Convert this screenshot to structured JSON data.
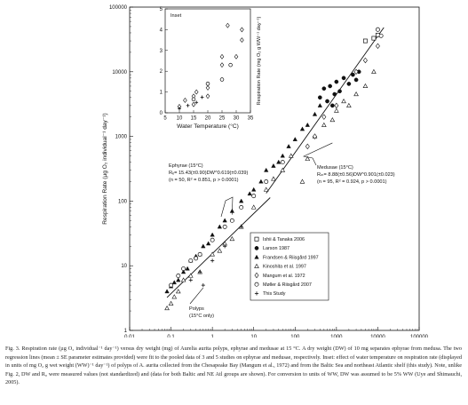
{
  "chart_data": [
    {
      "type": "scatter",
      "title": "",
      "xlabel": "Dry Weight (mg)",
      "ylabel": "Respiration Rate (µg O₂ individual⁻¹ day⁻¹)",
      "xscale": "log",
      "yscale": "log",
      "xlim": [
        0.01,
        100000
      ],
      "ylim": [
        1,
        100000
      ],
      "x_ticks": [
        "0.01",
        "0.1",
        "1",
        "10",
        "100",
        "1000",
        "10000",
        "100000"
      ],
      "y_ticks": [
        "1",
        "10",
        "100",
        "1000",
        "10000",
        "100000"
      ],
      "grid": false,
      "legend_position": "lower-right",
      "series": [
        {
          "name": "Ishii & Tanaka 2006",
          "marker": "square-open",
          "points": [
            [
              8000,
              33000
            ],
            [
              10000,
              37000
            ],
            [
              5000,
              30000
            ]
          ]
        },
        {
          "name": "Larson 1987",
          "marker": "circle-filled",
          "points": [
            [
              400,
              4000
            ],
            [
              500,
              5500
            ],
            [
              600,
              3500
            ],
            [
              700,
              6000
            ],
            [
              800,
              3000
            ],
            [
              900,
              4500
            ],
            [
              1000,
              7000
            ],
            [
              1200,
              5000
            ],
            [
              1500,
              8000
            ],
            [
              2000,
              6500
            ],
            [
              2500,
              9000
            ],
            [
              3000,
              7500
            ],
            [
              3500,
              10000
            ]
          ]
        },
        {
          "name": "Frandsen & Riisgård 1997",
          "marker": "triangle-filled",
          "points": [
            [
              0.08,
              4
            ],
            [
              0.1,
              4.8
            ],
            [
              0.12,
              5.5
            ],
            [
              0.15,
              6
            ],
            [
              0.2,
              8
            ],
            [
              0.25,
              9
            ],
            [
              0.3,
              12
            ],
            [
              0.4,
              14
            ],
            [
              0.5,
              15
            ],
            [
              0.6,
              20
            ],
            [
              0.8,
              22
            ],
            [
              1,
              30
            ],
            [
              1.5,
              40
            ],
            [
              2,
              50
            ],
            [
              3,
              70
            ],
            [
              5,
              100
            ],
            [
              8,
              130
            ],
            [
              10,
              150
            ],
            [
              15,
              200
            ],
            [
              20,
              300
            ],
            [
              30,
              350
            ],
            [
              40,
              400
            ],
            [
              50,
              500
            ],
            [
              70,
              700
            ],
            [
              100,
              900
            ],
            [
              150,
              1300
            ],
            [
              200,
              1500
            ],
            [
              300,
              2200
            ],
            [
              400,
              3000
            ]
          ]
        },
        {
          "name": "Kinoshita et al. 1997",
          "marker": "triangle-open",
          "points": [
            [
              0.08,
              2.2
            ],
            [
              0.1,
              2.6
            ],
            [
              0.12,
              3.3
            ],
            [
              0.15,
              4
            ],
            [
              0.2,
              6
            ],
            [
              0.3,
              7
            ],
            [
              0.5,
              8
            ],
            [
              1,
              15
            ],
            [
              1.5,
              17
            ],
            [
              2,
              22
            ],
            [
              3,
              26
            ],
            [
              5,
              40
            ],
            [
              10,
              80
            ],
            [
              20,
              150
            ],
            [
              30,
              220
            ],
            [
              50,
              300
            ],
            [
              80,
              500
            ],
            [
              150,
              200
            ],
            [
              200,
              450
            ],
            [
              300,
              1000
            ],
            [
              500,
              1500
            ],
            [
              800,
              1800
            ],
            [
              1000,
              2500
            ],
            [
              1500,
              3500
            ],
            [
              2000,
              3000
            ],
            [
              3000,
              4500
            ],
            [
              5000,
              6000
            ],
            [
              8000,
              10000
            ]
          ]
        },
        {
          "name": "Mangum et al. 1972",
          "marker": "diamond-open",
          "points": [
            [
              200,
              700
            ],
            [
              300,
              1000
            ],
            [
              500,
              2000
            ],
            [
              1000,
              3000
            ],
            [
              3000,
              10000
            ],
            [
              5000,
              15000
            ],
            [
              10000,
              25000
            ]
          ]
        },
        {
          "name": "Møller & Riisgård 2007",
          "marker": "circle-open",
          "points": [
            [
              0.1,
              5
            ],
            [
              0.15,
              7
            ],
            [
              0.2,
              9
            ],
            [
              0.3,
              12
            ],
            [
              0.4,
              13
            ],
            [
              0.5,
              15
            ],
            [
              1,
              25
            ],
            [
              2,
              40
            ],
            [
              3,
              50
            ],
            [
              5,
              80
            ],
            [
              10,
              120
            ],
            [
              20,
              200
            ],
            [
              50,
              400
            ],
            [
              10000,
              45000
            ],
            [
              12000,
              36000
            ]
          ]
        },
        {
          "name": "This Study",
          "marker": "plus",
          "points": [
            [
              0.3,
              6
            ],
            [
              0.5,
              8
            ],
            [
              0.6,
              5
            ],
            [
              1,
              12
            ],
            [
              2,
              20
            ],
            [
              5,
              40
            ]
          ]
        }
      ],
      "annotations": [
        {
          "text": "Ephyrae (15°C)",
          "lines": [
            "Ephyrae (15°C)",
            "Rₑ= 15.43(±0.90)DW^0.619(±0.039)",
            "(n = 50, R² = 0.851, p > 0.0001)"
          ]
        },
        {
          "text": "Medusae (15°C)",
          "lines": [
            "Medusae (15°C)",
            "Rₘ= 8.88(±0.56)DW^0.901(±0.023)",
            "(n = 95, R² = 0.924, p > 0.0001)"
          ]
        },
        {
          "text": "Polyps (15°C only)",
          "lines": [
            "Polyps",
            "(15°C only)"
          ]
        }
      ],
      "regressions": [
        {
          "name": "Ephyrae",
          "a": 15.43,
          "b": 0.619,
          "x_range": [
            0.08,
            25
          ]
        },
        {
          "name": "Medusae",
          "a": 8.88,
          "b": 0.901,
          "x_range": [
            20,
            14000
          ]
        }
      ]
    },
    {
      "type": "scatter",
      "title": "Inset",
      "xlabel": "Water Temperature (°C)",
      "ylabel": "Respiration Rate (mg O₂ g WW⁻¹ day⁻¹)",
      "xlim": [
        5,
        35
      ],
      "ylim": [
        0,
        5
      ],
      "x_ticks": [
        "5",
        "10",
        "15",
        "20",
        "25",
        "30",
        "35"
      ],
      "y_ticks": [
        "0",
        "1",
        "2",
        "3",
        "4",
        "5"
      ],
      "grid": false,
      "series": [
        {
          "name": "Mangum et al. 1972",
          "marker": "diamond-open",
          "points": [
            [
              10,
              0.3
            ],
            [
              12,
              0.6
            ],
            [
              15,
              0.4
            ],
            [
              15,
              0.8
            ],
            [
              16,
              1.0
            ],
            [
              20,
              1.2
            ],
            [
              20,
              0.8
            ],
            [
              25,
              2.7
            ],
            [
              25,
              2.3
            ],
            [
              27,
              4.2
            ],
            [
              32,
              4.0
            ],
            [
              32,
              3.5
            ],
            [
              30,
              2.7
            ]
          ]
        },
        {
          "name": "Møller & Riisgård 2007",
          "marker": "circle-open",
          "points": [
            [
              15,
              0.65
            ],
            [
              20,
              1.4
            ],
            [
              25,
              1.6
            ],
            [
              28,
              2.3
            ]
          ]
        },
        {
          "name": "This Study",
          "marker": "plus",
          "points": [
            [
              10,
              0.2
            ],
            [
              13,
              0.35
            ],
            [
              16,
              0.5
            ],
            [
              18,
              0.75
            ]
          ]
        }
      ]
    }
  ],
  "caption": {
    "lead": "Fig. 3.",
    "text": "Respiration rate (µg O₂ individual⁻¹ day⁻¹) versus dry weight (mg) of Aurelia aurita polyps, ephyrae and medusae at 15 °C. A dry weight (DW) of 10 mg separates ephyrae from medusa. The two regression lines (mean ± SE parameter estimates provided) were fit to the pooled data of 3 and 5 studies on ephyrae and medusae, respectively. Inset: effect of water temperature on respiration rate (displayed in units of mg O₂ g wet weight (WW)⁻¹ day⁻¹) of polyps of A. aurita collected from the Chesapeake Bay (Mangum et al., 1972) and from the Baltic Sea and northeast Atlantic shelf (this study). Note, unlike Fig. 2, DW and R₀ were measured values (not standardized) and (data for both Baltic and NE Atl groups are shown). For conversion to units of WW, DW was assumed to be 5% WW (Uye and Shimauchi, 2005)."
  }
}
